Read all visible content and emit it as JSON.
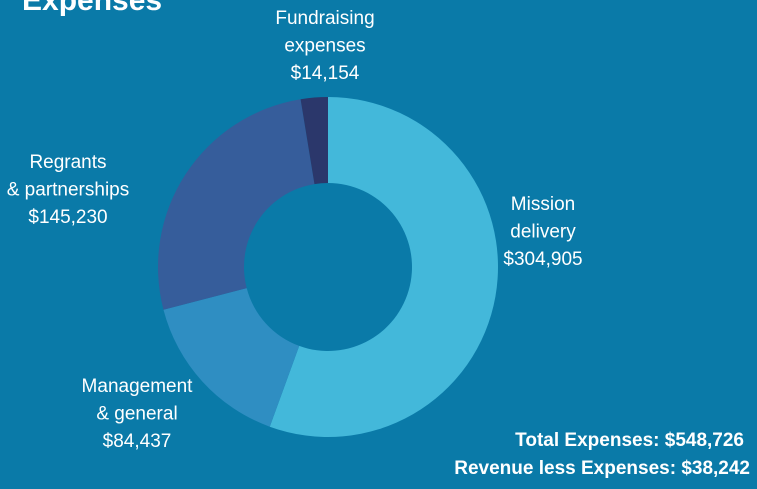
{
  "chart_data": {
    "type": "donut",
    "title": "Expenses",
    "categories": [
      [
        "Mission",
        "delivery"
      ],
      [
        "Management",
        "& general"
      ],
      [
        "Regrants",
        "& partnerships"
      ],
      [
        "Fundraising",
        "expenses"
      ]
    ],
    "values": [
      304905,
      84437,
      145230,
      14154
    ],
    "value_labels": [
      "$304,905",
      "$84,437",
      "$145,230",
      "$14,154"
    ],
    "colors": [
      "#43b8da",
      "#2f8ec2",
      "#365d9b",
      "#2b376b"
    ],
    "annotations": [
      "Total Expenses: $548,726",
      "Revenue less Expenses: $38,242"
    ]
  }
}
